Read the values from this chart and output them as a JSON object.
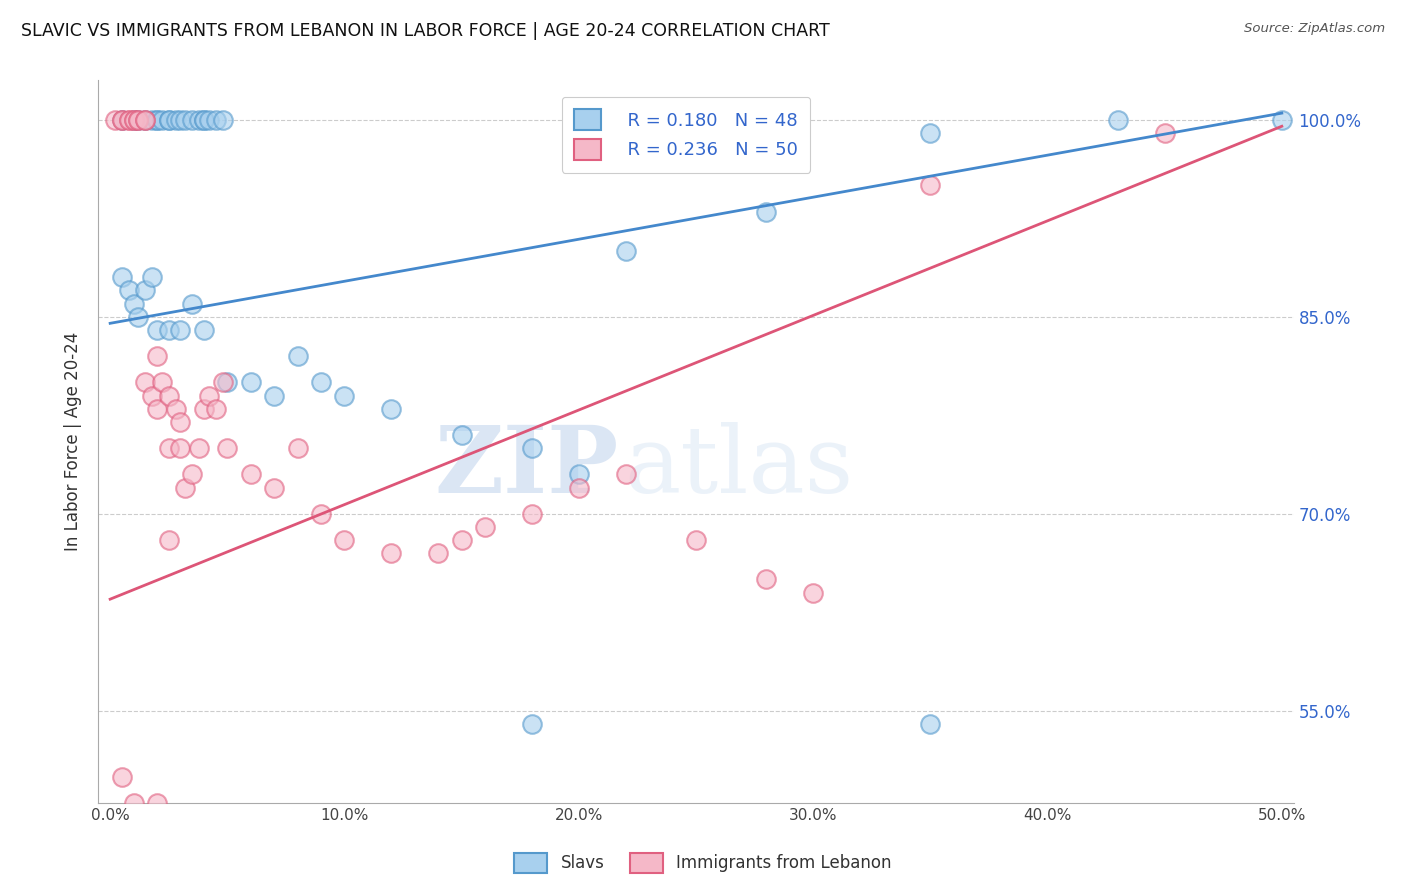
{
  "title": "SLAVIC VS IMMIGRANTS FROM LEBANON IN LABOR FORCE | AGE 20-24 CORRELATION CHART",
  "source": "Source: ZipAtlas.com",
  "ylabel": "In Labor Force | Age 20-24",
  "xlabel_ticks": [
    "0.0%",
    "10.0%",
    "20.0%",
    "30.0%",
    "40.0%",
    "50.0%"
  ],
  "xlabel_vals": [
    0.0,
    0.1,
    0.2,
    0.3,
    0.4,
    0.5
  ],
  "ytick_labels": [
    "55.0%",
    "70.0%",
    "85.0%",
    "100.0%"
  ],
  "ytick_vals": [
    0.55,
    0.7,
    0.85,
    1.0
  ],
  "xlim": [
    -0.005,
    0.505
  ],
  "ylim": [
    0.48,
    1.03
  ],
  "blue_R": 0.18,
  "blue_N": 48,
  "pink_R": 0.236,
  "pink_N": 50,
  "blue_color": "#a8d0ee",
  "pink_color": "#f5b8c8",
  "blue_edge_color": "#5599cc",
  "pink_edge_color": "#e06080",
  "blue_line_color": "#4488cc",
  "pink_line_color": "#dd5577",
  "watermark_zip": "ZIP",
  "watermark_atlas": "atlas",
  "legend_label_blue": "Slavs",
  "legend_label_pink": "Immigrants from Lebanon",
  "blue_line_intercept": 0.845,
  "blue_line_slope": 0.32,
  "pink_line_intercept": 0.635,
  "pink_line_slope": 0.72,
  "blue_scatter_x": [
    0.005,
    0.01,
    0.012,
    0.015,
    0.018,
    0.02,
    0.02,
    0.022,
    0.025,
    0.025,
    0.028,
    0.03,
    0.032,
    0.035,
    0.038,
    0.04,
    0.04,
    0.042,
    0.045,
    0.048,
    0.005,
    0.008,
    0.01,
    0.012,
    0.015,
    0.018,
    0.02,
    0.025,
    0.03,
    0.035,
    0.04,
    0.05,
    0.06,
    0.07,
    0.08,
    0.09,
    0.1,
    0.12,
    0.15,
    0.18,
    0.2,
    0.22,
    0.28,
    0.35,
    0.43,
    0.5,
    0.18,
    0.35
  ],
  "blue_scatter_y": [
    1.0,
    1.0,
    1.0,
    1.0,
    1.0,
    1.0,
    1.0,
    1.0,
    1.0,
    1.0,
    1.0,
    1.0,
    1.0,
    1.0,
    1.0,
    1.0,
    1.0,
    1.0,
    1.0,
    1.0,
    0.88,
    0.87,
    0.86,
    0.85,
    0.87,
    0.88,
    0.84,
    0.84,
    0.84,
    0.86,
    0.84,
    0.8,
    0.8,
    0.79,
    0.82,
    0.8,
    0.79,
    0.78,
    0.76,
    0.75,
    0.73,
    0.9,
    0.93,
    0.99,
    1.0,
    1.0,
    0.54,
    0.54
  ],
  "pink_scatter_x": [
    0.002,
    0.005,
    0.005,
    0.008,
    0.008,
    0.01,
    0.01,
    0.012,
    0.012,
    0.015,
    0.015,
    0.015,
    0.018,
    0.02,
    0.02,
    0.022,
    0.025,
    0.025,
    0.028,
    0.03,
    0.03,
    0.032,
    0.035,
    0.038,
    0.04,
    0.042,
    0.045,
    0.048,
    0.05,
    0.06,
    0.07,
    0.08,
    0.09,
    0.1,
    0.12,
    0.14,
    0.15,
    0.16,
    0.18,
    0.2,
    0.22,
    0.25,
    0.28,
    0.3,
    0.35,
    0.45,
    0.005,
    0.01,
    0.02,
    0.025
  ],
  "pink_scatter_y": [
    1.0,
    1.0,
    1.0,
    1.0,
    1.0,
    1.0,
    1.0,
    1.0,
    1.0,
    1.0,
    1.0,
    0.8,
    0.79,
    0.78,
    0.82,
    0.8,
    0.79,
    0.75,
    0.78,
    0.77,
    0.75,
    0.72,
    0.73,
    0.75,
    0.78,
    0.79,
    0.78,
    0.8,
    0.75,
    0.73,
    0.72,
    0.75,
    0.7,
    0.68,
    0.67,
    0.67,
    0.68,
    0.69,
    0.7,
    0.72,
    0.73,
    0.68,
    0.65,
    0.64,
    0.95,
    0.99,
    0.5,
    0.48,
    0.48,
    0.68
  ]
}
